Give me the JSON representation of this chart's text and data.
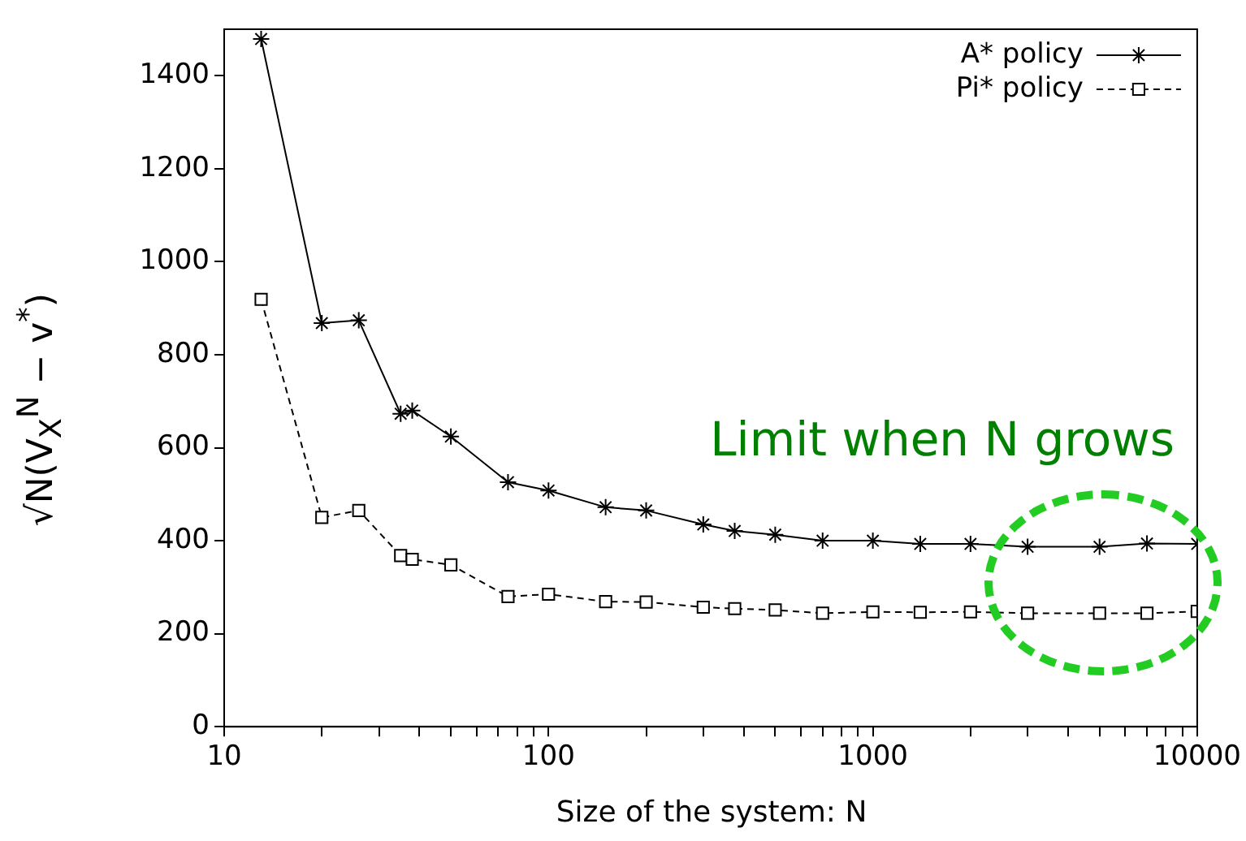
{
  "chart_data": {
    "type": "line",
    "xlabel": "Size of the system:  N",
    "ylabel": "√N(V$_{X}$$^{N}$ − v$^{*}$)",
    "log": "x",
    "xlim": [
      10,
      10000
    ],
    "ylim": [
      0,
      1500
    ],
    "xticks": [
      10,
      {
        "value": 20,
        "label": null
      },
      {
        "value": 30,
        "label": null
      },
      {
        "value": 40,
        "label": null
      },
      {
        "value": 50,
        "label": null
      },
      {
        "value": 60,
        "label": null
      },
      {
        "value": 70,
        "label": null
      },
      {
        "value": 80,
        "label": null
      },
      {
        "value": 90,
        "label": null
      },
      100,
      {
        "value": 200,
        "label": null
      },
      {
        "value": 300,
        "label": null
      },
      {
        "value": 400,
        "label": null
      },
      {
        "value": 500,
        "label": null
      },
      {
        "value": 600,
        "label": null
      },
      {
        "value": 700,
        "label": null
      },
      {
        "value": 800,
        "label": null
      },
      {
        "value": 900,
        "label": null
      },
      1000,
      {
        "value": 2000,
        "label": null
      },
      {
        "value": 3000,
        "label": null
      },
      {
        "value": 4000,
        "label": null
      },
      {
        "value": 5000,
        "label": null
      },
      {
        "value": 6000,
        "label": null
      },
      {
        "value": 7000,
        "label": null
      },
      {
        "value": 8000,
        "label": null
      },
      {
        "value": 9000,
        "label": null
      },
      10000
    ],
    "yticks": [
      0,
      200,
      400,
      600,
      800,
      1000,
      1200,
      1400
    ],
    "grid": false,
    "legend": "top right",
    "x": [
      13,
      20,
      26,
      35,
      38,
      50,
      75,
      100,
      150,
      200,
      300,
      375,
      500,
      700,
      1000,
      1400,
      2000,
      3000,
      5000,
      7000,
      10000
    ],
    "series": [
      {
        "name": "A* policy",
        "color": "#000000",
        "marker": "cross",
        "line_style": "solid",
        "values": [
          1479,
          868,
          874,
          673,
          680,
          624,
          526,
          508,
          472,
          465,
          435,
          421,
          413,
          400,
          400,
          393,
          393,
          387,
          387,
          394,
          393
        ]
      },
      {
        "name": "Pi* policy",
        "color": "#000000",
        "marker": "square",
        "line_style": "dashed",
        "values": [
          919,
          450,
          465,
          368,
          360,
          348,
          280,
          285,
          269,
          268,
          257,
          254,
          251,
          244,
          247,
          246,
          247,
          244,
          244,
          244,
          248
        ]
      }
    ],
    "annotations": [
      "Limit when N grows"
    ]
  }
}
